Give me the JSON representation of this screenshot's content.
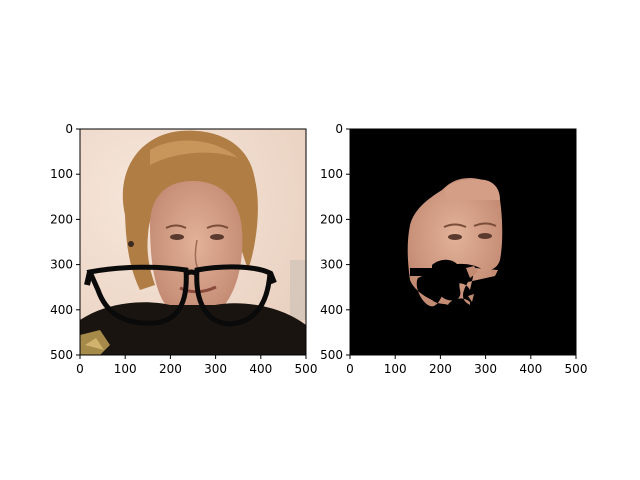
{
  "chart_data": [
    {
      "type": "image",
      "title": "",
      "xlabel": "",
      "ylabel": "",
      "xlim": [
        0,
        500
      ],
      "ylim": [
        500,
        0
      ],
      "y_inverted": true,
      "xticks": [
        "0",
        "100",
        "200",
        "300",
        "400",
        "500"
      ],
      "yticks": [
        "0",
        "100",
        "200",
        "300",
        "400",
        "500"
      ],
      "content": "photo of a woman with blonde hair wearing black clothing, with a pair of black eyeglasses overlaid below the face",
      "background": "#efd9c9"
    },
    {
      "type": "image",
      "title": "",
      "xlabel": "",
      "ylabel": "",
      "xlim": [
        0,
        500
      ],
      "ylim": [
        500,
        0
      ],
      "y_inverted": true,
      "xticks": [
        "0",
        "100",
        "200",
        "300",
        "400",
        "500"
      ],
      "yticks": [
        "0",
        "100",
        "200",
        "300",
        "400",
        "500"
      ],
      "content": "segmented face region on a black background, with the eyeglasses area masked out",
      "background": "#000000"
    }
  ],
  "colors": {
    "skin": "#d9a78c",
    "skin_shadow": "#b87c66",
    "hair": "#b07d45",
    "clothing": "#1a1410",
    "glasses": "#0a0a0a",
    "mask_background": "#000000"
  }
}
